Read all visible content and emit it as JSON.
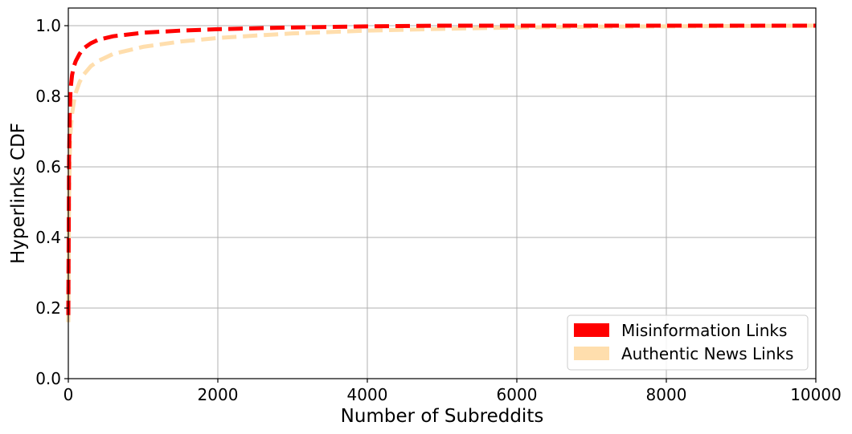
{
  "chart_data": {
    "type": "line",
    "title": "",
    "xlabel": "Number of Subreddits",
    "ylabel": "Hyperlinks CDF",
    "xlim": [
      0,
      10000
    ],
    "ylim": [
      0,
      1.05
    ],
    "xticks": [
      0,
      2000,
      4000,
      6000,
      8000,
      10000
    ],
    "xtick_labels": [
      "0",
      "2000",
      "4000",
      "6000",
      "8000",
      "10000"
    ],
    "yticks": [
      0.0,
      0.2,
      0.4,
      0.6,
      0.8,
      1.0
    ],
    "ytick_labels": [
      "0.0",
      "0.2",
      "0.4",
      "0.6",
      "0.8",
      "1.0"
    ],
    "grid": true,
    "legend_position": "bottom-right",
    "line_style": "dashed",
    "series": [
      {
        "name": "Misinformation Links",
        "color": "#ff0000",
        "x": [
          0,
          5,
          10,
          20,
          30,
          50,
          75,
          100,
          150,
          200,
          300,
          400,
          600,
          800,
          1000,
          1500,
          2000,
          3000,
          4000,
          5000,
          6000,
          7000,
          8000,
          9000,
          10000
        ],
        "y": [
          0.18,
          0.4,
          0.62,
          0.76,
          0.82,
          0.86,
          0.885,
          0.9,
          0.92,
          0.935,
          0.95,
          0.96,
          0.97,
          0.975,
          0.98,
          0.986,
          0.99,
          0.995,
          0.998,
          1.0,
          1.0,
          1.0,
          1.0,
          1.0,
          1.0
        ]
      },
      {
        "name": "Authentic News Links",
        "color": "#ffdead",
        "x": [
          0,
          5,
          10,
          20,
          30,
          50,
          75,
          100,
          150,
          200,
          300,
          400,
          600,
          800,
          1000,
          1500,
          2000,
          2500,
          3000,
          4000,
          5000,
          6000,
          7000,
          8000,
          9000,
          10000
        ],
        "y": [
          0.16,
          0.35,
          0.52,
          0.64,
          0.7,
          0.75,
          0.785,
          0.81,
          0.84,
          0.86,
          0.885,
          0.9,
          0.92,
          0.93,
          0.94,
          0.955,
          0.965,
          0.972,
          0.978,
          0.986,
          0.991,
          0.995,
          0.997,
          0.998,
          0.999,
          1.0
        ]
      }
    ]
  }
}
